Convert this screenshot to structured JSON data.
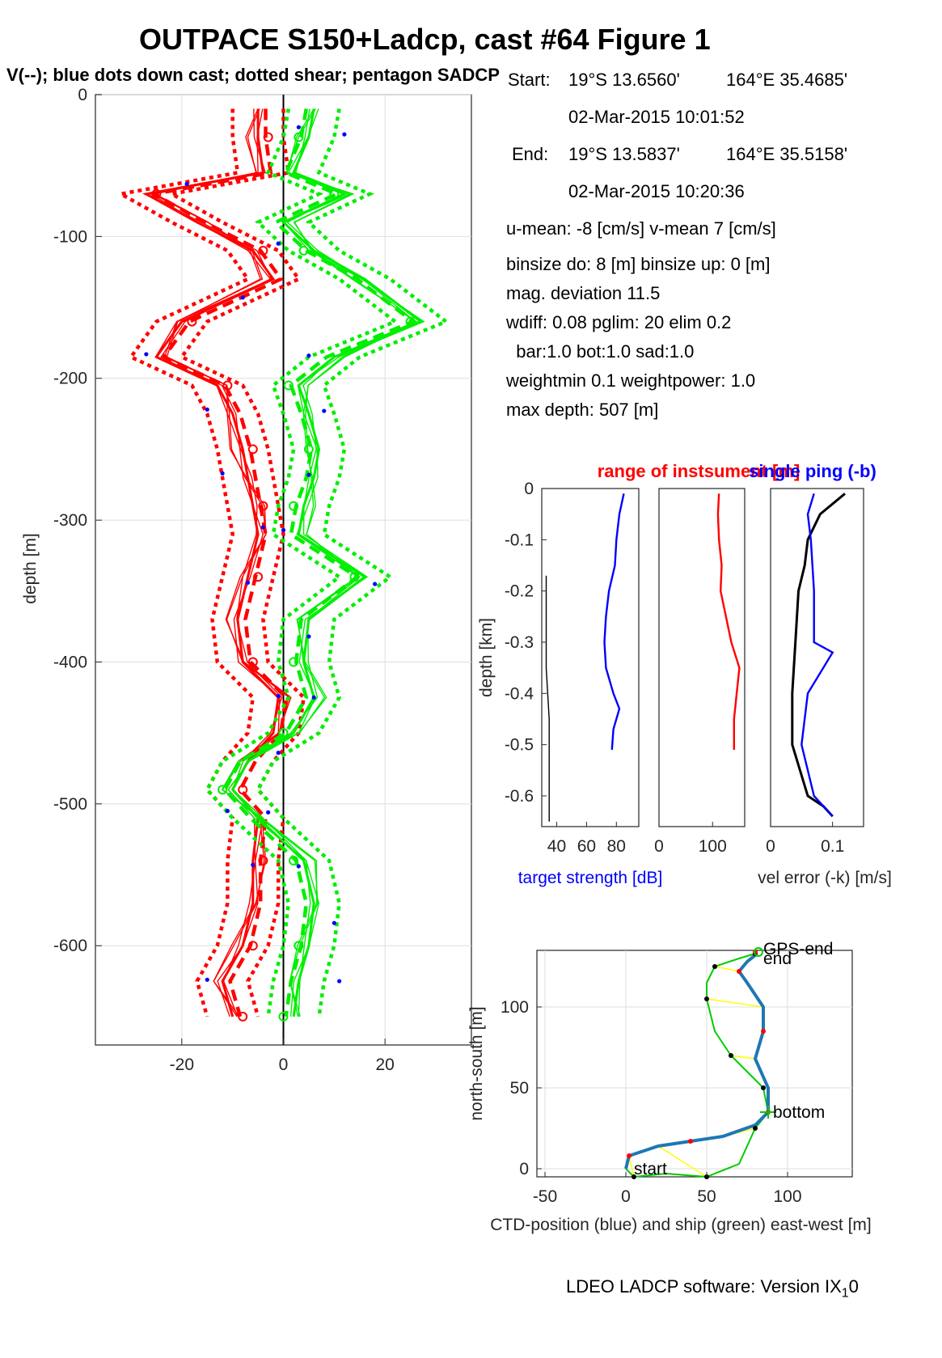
{
  "figure": {
    "title": "OUTPACE S150+Ladcp, cast #64  Figure 1",
    "subtitle": "V(--); blue dots down cast; dotted shear; pentagon SADCP",
    "footer": "LDEO LADCP software: Version IX",
    "footer_sub": "1",
    "footer_tail": "0"
  },
  "info": {
    "start_label": "Start:",
    "start_lat": "19°S 13.6560'",
    "start_lon": "164°E 35.4685'",
    "start_time": "02-Mar-2015 10:01:52",
    "end_label": "End:",
    "end_lat": "19°S 13.5837'",
    "end_lon": "164°E 35.5158'",
    "end_time": "02-Mar-2015 10:20:36",
    "means": "u-mean:  -8 [cm/s]    v-mean   7 [cm/s]",
    "binsize": "binsize do: 8 [m]  binsize up:  0 [m]",
    "magdev": "mag. deviation 11.5",
    "wdiff": "wdiff: 0.08  pglim: 20  elim 0.2",
    "bar": "  bar:1.0 bot:1.0 sad:1.0",
    "weight": "weightmin 0.1  weightpower: 1.0",
    "maxdepth": "max depth: 507 [m]"
  },
  "colors": {
    "u": "#ff0000",
    "v": "#00ee00",
    "dots": "#0000ff",
    "ts": "#0000ff",
    "ship": "#00cc00",
    "ctd": "#1f77b4",
    "link": "#ffff00"
  },
  "chart_data": [
    {
      "type": "line",
      "name": "velocity profile",
      "ylabel": "depth [m]",
      "xlim": [
        -37,
        37
      ],
      "ylim": [
        -670,
        0
      ],
      "xticks": [
        -20,
        0,
        20
      ],
      "yticks": [
        0,
        -100,
        -200,
        -300,
        -400,
        -500,
        -600
      ],
      "series": [
        {
          "name": "u",
          "color": "red",
          "depth": [
            -10,
            -30,
            -55,
            -70,
            -90,
            -110,
            -130,
            -160,
            -185,
            -205,
            -225,
            -250,
            -270,
            -290,
            -310,
            -340,
            -370,
            -400,
            -425,
            -450,
            -470,
            -490,
            -510,
            -540,
            -570,
            -600,
            -625,
            -650
          ],
          "values": [
            -5,
            -5,
            -4,
            -27,
            -17,
            -6,
            -2,
            -20,
            -25,
            -13,
            -10,
            -8,
            -7,
            -6,
            -5,
            -7,
            -9,
            -8,
            -1,
            -2,
            -7,
            -10,
            -5,
            -6,
            -6,
            -8,
            -12,
            -10
          ]
        },
        {
          "name": "v",
          "color": "green",
          "depth": [
            -10,
            -30,
            -55,
            -70,
            -90,
            -110,
            -130,
            -160,
            -185,
            -205,
            -225,
            -250,
            -270,
            -290,
            -310,
            -340,
            -370,
            -400,
            -425,
            -450,
            -470,
            -490,
            -510,
            -540,
            -570,
            -600,
            -625,
            -650
          ],
          "values": [
            6,
            5,
            2,
            12,
            0,
            6,
            16,
            27,
            10,
            3,
            5,
            7,
            6,
            4,
            3,
            16,
            5,
            4,
            6,
            2,
            -7,
            -10,
            -5,
            4,
            6,
            5,
            3,
            2
          ]
        }
      ],
      "downcast_dots": {
        "depth": [
          -23,
          -28,
          -63,
          -105,
          -143,
          -183,
          -184,
          -222,
          -223,
          -267,
          -268,
          -305,
          -307,
          -344,
          -345,
          -382,
          -424,
          -425,
          -464,
          -505,
          -506,
          -543,
          -544,
          -584,
          -624,
          -625
        ],
        "values": [
          3,
          12,
          -19,
          -1,
          -8,
          -27,
          5,
          -15,
          8,
          -12,
          5,
          -4,
          0,
          -7,
          18,
          5,
          -1,
          6,
          -1,
          -11,
          -3,
          -6,
          3,
          10,
          -15,
          11
        ]
      }
    },
    {
      "type": "line",
      "name": "target strength",
      "xlabel": "target strength [dB]",
      "ylabel": "depth [km]",
      "xlim": [
        30,
        95
      ],
      "ylim": [
        -0.66,
        0
      ],
      "xticks": [
        40,
        60,
        80
      ],
      "yticks": [
        0,
        -0.1,
        -0.2,
        -0.3,
        -0.4,
        -0.5,
        -0.6
      ],
      "series": [
        {
          "name": "target strength",
          "color": "blue",
          "depth": [
            -0.01,
            -0.05,
            -0.1,
            -0.15,
            -0.2,
            -0.25,
            -0.3,
            -0.35,
            -0.4,
            -0.43,
            -0.47,
            -0.51
          ],
          "values": [
            85,
            82,
            80,
            79,
            75,
            73,
            72,
            73,
            78,
            82,
            78,
            77
          ]
        },
        {
          "name": "range",
          "color": "black",
          "depth": [
            -0.17,
            -0.25,
            -0.35,
            -0.45,
            -0.55,
            -0.65
          ],
          "values": [
            33,
            33,
            33,
            35,
            35,
            35
          ]
        }
      ]
    },
    {
      "type": "line",
      "name": "range of instruments",
      "title": "range of instsument [m]",
      "xlim": [
        0,
        160
      ],
      "ylim": [
        -0.66,
        0
      ],
      "xticks": [
        0,
        100
      ],
      "series": [
        {
          "name": "range",
          "color": "red",
          "depth": [
            -0.01,
            -0.05,
            -0.1,
            -0.15,
            -0.2,
            -0.25,
            -0.3,
            -0.35,
            -0.4,
            -0.45,
            -0.51
          ],
          "values": [
            112,
            110,
            112,
            117,
            115,
            125,
            135,
            150,
            145,
            140,
            140
          ]
        }
      ]
    },
    {
      "type": "line",
      "name": "single ping",
      "title": "single ping (-b)",
      "xlabel": "vel error (-k) [m/s]",
      "xlim": [
        0,
        0.15
      ],
      "ylim": [
        -0.66,
        0
      ],
      "xticks": [
        0,
        0.1
      ],
      "series": [
        {
          "name": "vel error",
          "color": "black",
          "depth": [
            -0.01,
            -0.05,
            -0.1,
            -0.15,
            -0.2,
            -0.3,
            -0.4,
            -0.5,
            -0.6,
            -0.62,
            -0.64
          ],
          "values": [
            0.12,
            0.08,
            0.06,
            0.055,
            0.045,
            0.04,
            0.035,
            0.035,
            0.06,
            0.085,
            0.1
          ]
        },
        {
          "name": "single ping",
          "color": "blue",
          "depth": [
            -0.01,
            -0.05,
            -0.1,
            -0.2,
            -0.3,
            -0.32,
            -0.4,
            -0.5,
            -0.6,
            -0.64
          ],
          "values": [
            0.07,
            0.06,
            0.065,
            0.07,
            0.07,
            0.1,
            0.06,
            0.05,
            0.07,
            0.1
          ]
        }
      ]
    },
    {
      "type": "line",
      "name": "track",
      "xlabel": "CTD-position (blue) and ship (green) east-west [m]",
      "ylabel": "north-south [m]",
      "xlim": [
        -55,
        140
      ],
      "ylim": [
        -5,
        135
      ],
      "xticks": [
        -50,
        0,
        50,
        100
      ],
      "yticks": [
        0,
        50,
        100
      ],
      "labels": [
        "start",
        "bottom",
        "end",
        "GPS-end"
      ],
      "series": [
        {
          "name": "ship",
          "color": "green",
          "x": [
            0,
            5,
            25,
            50,
            70,
            80,
            88,
            85,
            75,
            65,
            55,
            50,
            50,
            55,
            70,
            80
          ],
          "y": [
            0,
            -5,
            -3,
            -5,
            3,
            25,
            35,
            50,
            60,
            70,
            85,
            105,
            115,
            125,
            130,
            133
          ]
        },
        {
          "name": "ctd",
          "color": "blue",
          "x": [
            0,
            2,
            8,
            20,
            40,
            60,
            80,
            88,
            88,
            80,
            85,
            85,
            75,
            70,
            75,
            80,
            80
          ],
          "y": [
            0,
            8,
            10,
            14,
            17,
            20,
            27,
            35,
            50,
            68,
            85,
            100,
            115,
            122,
            128,
            132,
            134
          ]
        }
      ]
    }
  ]
}
